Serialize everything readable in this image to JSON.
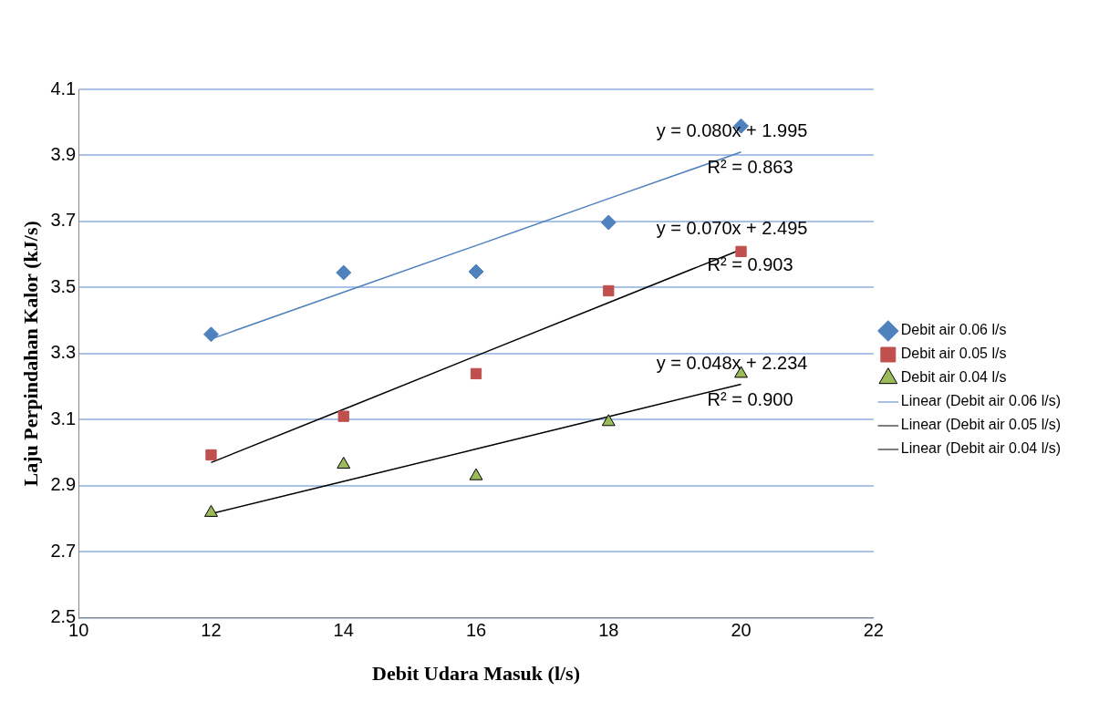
{
  "chart_data": {
    "type": "scatter",
    "xlabel": "Debit Udara Masuk (l/s)",
    "ylabel": "Laju Perpindahan Kalor (kJ/s)",
    "xlim": [
      10,
      22
    ],
    "xticks": [
      10,
      12,
      14,
      16,
      18,
      20,
      22
    ],
    "ylim": [
      2.5,
      4.1
    ],
    "yticks": [
      2.5,
      2.7,
      2.9,
      3.1,
      3.3,
      3.5,
      3.7,
      3.9,
      4.1
    ],
    "grid": "y",
    "legend": "right",
    "x": [
      12,
      14,
      16,
      18,
      20
    ],
    "series": [
      {
        "name": "Debit air 0.06 l/s",
        "color": "#4f81bd",
        "marker": "diamond",
        "values": [
          3.358,
          3.545,
          3.548,
          3.697,
          3.989
        ]
      },
      {
        "name": "Debit air 0.05 l/s",
        "color": "#c0504d",
        "marker": "square",
        "values": [
          2.993,
          3.11,
          3.239,
          3.49,
          3.609
        ]
      },
      {
        "name": "Debit air 0.04 l/s",
        "color": "#9bbb59",
        "marker": "triangle",
        "values": [
          2.818,
          2.964,
          2.929,
          3.093,
          3.239
        ]
      },
      {
        "name": "Linear (Debit air 0.06 l/s)",
        "type": "line",
        "color": "#4f81bd",
        "marker": "none",
        "values": [
          3.344,
          3.486,
          3.627,
          3.769,
          3.91
        ]
      },
      {
        "name": "Linear (Debit air 0.05 l/s)",
        "type": "line",
        "color": "#000000",
        "marker": "none",
        "values": [
          2.97,
          3.131,
          3.293,
          3.454,
          3.615
        ]
      },
      {
        "name": "Linear (Debit air 0.04 l/s)",
        "type": "line",
        "color": "#000000",
        "marker": "none",
        "values": [
          2.815,
          2.913,
          3.011,
          3.109,
          3.207
        ]
      }
    ],
    "annotations": [
      "y = 0.080x + 1.995",
      "R² = 0.863",
      "y = 0.070x + 2.495",
      "R² = 0.903",
      "y = 0.048x + 2.234",
      "R² = 0.900"
    ]
  }
}
